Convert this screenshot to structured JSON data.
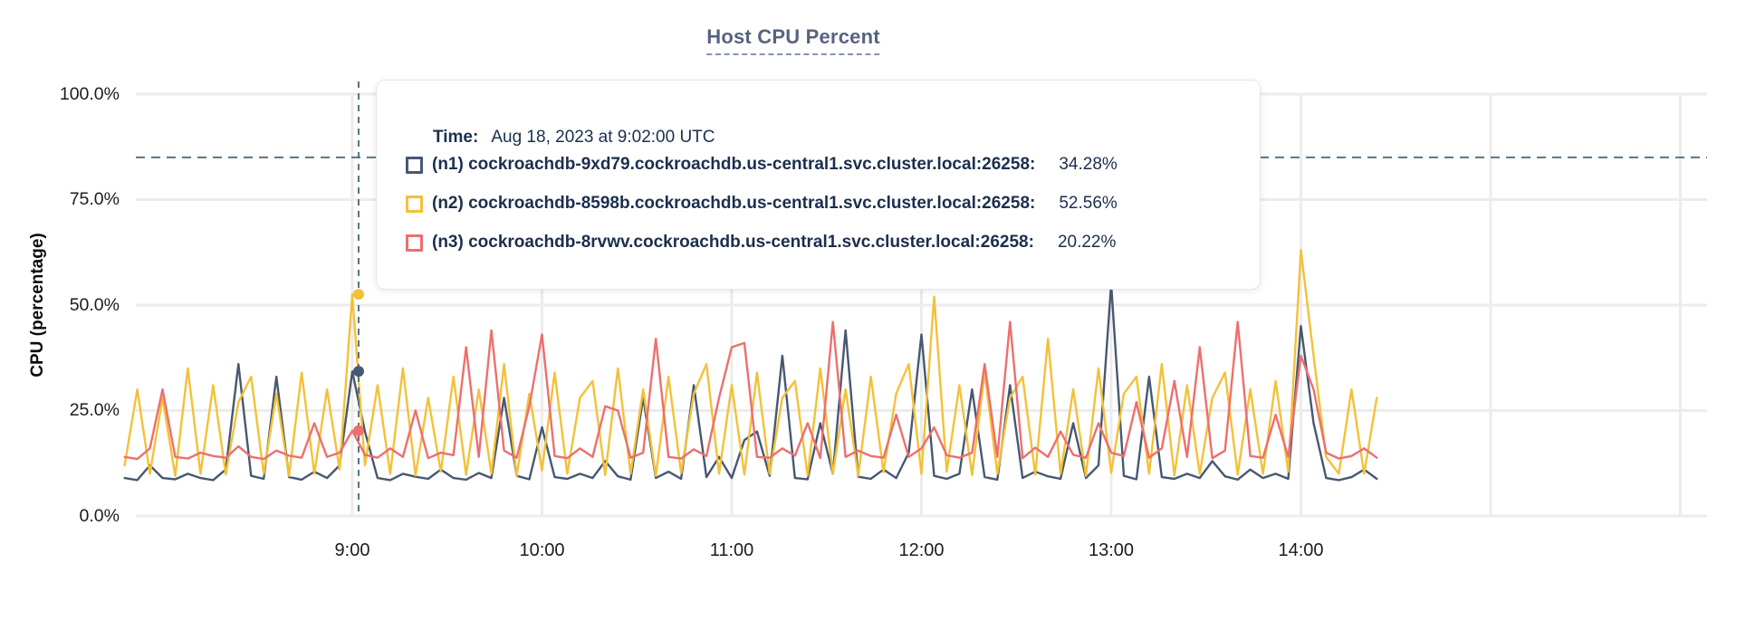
{
  "title": "Host CPU Percent",
  "tooltip": {
    "time_label": "Time:",
    "time_value": "Aug 18, 2023 at 9:02:00 UTC",
    "rows": [
      {
        "name": "(n1) cockroachdb-9xd79.cockroachdb.us-central1.svc.cluster.local:26258:",
        "value": "34.28%",
        "color": "#475872"
      },
      {
        "name": "(n2) cockroachdb-8598b.cockroachdb.us-central1.svc.cluster.local:26258:",
        "value": "52.56%",
        "color": "#F3C138"
      },
      {
        "name": "(n3) cockroachdb-8rvwv.cockroachdb.us-central1.svc.cluster.local:26258:",
        "value": "20.22%",
        "color": "#ED6F6E"
      }
    ]
  },
  "colors": {
    "grid": "#ececec",
    "dashed_guides": "#5c7282",
    "title_text": "#576480",
    "tooltip_text": "#1b2f4e"
  },
  "chart_data": {
    "type": "line",
    "title": "Host CPU Percent",
    "xlabel": "",
    "ylabel": "CPU (percentage)",
    "ylim": [
      0,
      100
    ],
    "y_ticks": [
      "100.0%",
      "75.0%",
      "50.0%",
      "25.0%",
      "0.0%"
    ],
    "y_tick_values": [
      100,
      75,
      50,
      25,
      0
    ],
    "x_ticks": [
      "9:00",
      "10:00",
      "11:00",
      "12:00",
      "13:00",
      "14:00"
    ],
    "x_tick_minutes": [
      540,
      600,
      660,
      720,
      780,
      840
    ],
    "grid": true,
    "threshold_percent": 85,
    "hover": {
      "time_min": 542,
      "time_text": "Aug 18, 2023 at 9:02:00 UTC",
      "values": [
        34.28,
        52.56,
        20.22
      ]
    },
    "x_start_min": 468,
    "x_step_min": 4,
    "series": [
      {
        "name": "(n1) cockroachdb-9xd79.cockroachdb.us-central1.svc.cluster.local:26258",
        "color": "#475872",
        "values": [
          9,
          8.5,
          12,
          9,
          8.7,
          10,
          9,
          8.5,
          11,
          36,
          9.5,
          8.8,
          33,
          9.2,
          8.6,
          10.5,
          9,
          12,
          34.28,
          20,
          9,
          8.5,
          10,
          9.3,
          8.8,
          11,
          9,
          8.6,
          10.2,
          9,
          28,
          9.5,
          8.7,
          21,
          9.2,
          8.8,
          10,
          9,
          13,
          9.4,
          8.6,
          28,
          9,
          10.5,
          8.8,
          31,
          9.2,
          14,
          9,
          18,
          20,
          9.5,
          38,
          9,
          8.7,
          22,
          10,
          44,
          9.3,
          8.8,
          11,
          9,
          15,
          43,
          9.5,
          8.8,
          10,
          30,
          9.2,
          8.6,
          31,
          9,
          10.5,
          9.4,
          8.8,
          22,
          9,
          12,
          55,
          9.5,
          8.7,
          33,
          9.2,
          8.8,
          10,
          9,
          13,
          9.4,
          8.6,
          11,
          9,
          10,
          8.8,
          45,
          22,
          9,
          8.5,
          9.2,
          11,
          8.8
        ]
      },
      {
        "name": "(n2) cockroachdb-8598b.cockroachdb.us-central1.svc.cluster.local:26258",
        "color": "#F3C138",
        "values": [
          12,
          30,
          10,
          28,
          9.5,
          35,
          10,
          31,
          9.8,
          27,
          33,
          10,
          29,
          9.5,
          34,
          10,
          30,
          11,
          52.56,
          12,
          31,
          10,
          35,
          9.6,
          28,
          10.5,
          33,
          9.8,
          30,
          10,
          36,
          9.5,
          29,
          10.8,
          34,
          10,
          28,
          32,
          9.7,
          35,
          10,
          30,
          9.5,
          33,
          10.2,
          29,
          36,
          10,
          31,
          9.8,
          34,
          10,
          28,
          32,
          9.6,
          35,
          10,
          30,
          9.5,
          33,
          10.4,
          29,
          36,
          10,
          52,
          10.5,
          31,
          9.7,
          34,
          10,
          28,
          33,
          9.8,
          42,
          10,
          30,
          9.5,
          35,
          10.2,
          29,
          33,
          10,
          36,
          9.6,
          31,
          10,
          28,
          34,
          9.8,
          30,
          10,
          32,
          10.5,
          63,
          38,
          14,
          10,
          30,
          10,
          28
        ]
      },
      {
        "name": "(n3) cockroachdb-8rvwv.cockroachdb.us-central1.svc.cluster.local:26258",
        "color": "#ED6F6E",
        "values": [
          14,
          13.5,
          16,
          30,
          14,
          13.6,
          15,
          14.2,
          13.8,
          16.5,
          14,
          13.5,
          15.5,
          14.3,
          13.8,
          22,
          14,
          15,
          20.22,
          14.5,
          13.8,
          16,
          14,
          25,
          13.7,
          15,
          14.4,
          40,
          14,
          44,
          15.5,
          13.8,
          26,
          43,
          14.2,
          13.7,
          16,
          14,
          26,
          25,
          13.8,
          15,
          42,
          14,
          13.6,
          15.8,
          14.2,
          28,
          40,
          41,
          14,
          13.8,
          16,
          14.3,
          22,
          13.7,
          46,
          14,
          15.5,
          14.2,
          13.8,
          24,
          14,
          16,
          21,
          14.4,
          13.8,
          15,
          36,
          14,
          46,
          13.7,
          16.2,
          14,
          20,
          14.5,
          13.8,
          22,
          15,
          14.2,
          27,
          13.8,
          16,
          32,
          14,
          40,
          13.7,
          15.5,
          46,
          14.2,
          13.8,
          24,
          14,
          38,
          30,
          15,
          13.6,
          14.2,
          16,
          13.8
        ]
      }
    ]
  }
}
